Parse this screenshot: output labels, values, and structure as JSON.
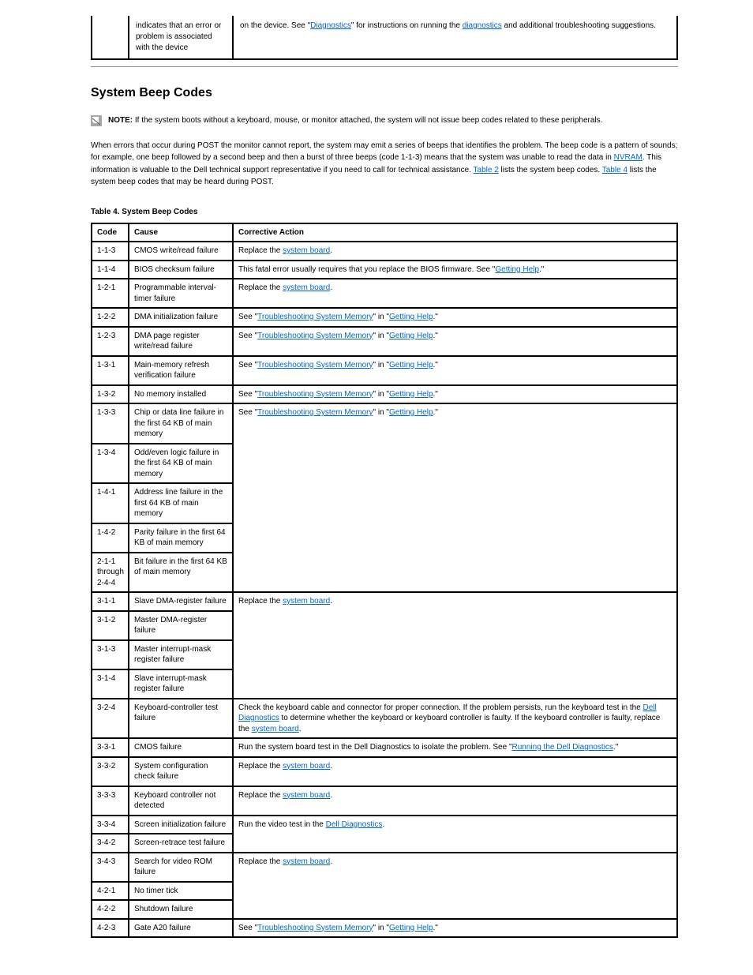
{
  "top_table": {
    "col1": "",
    "col2": "indicates that an error or problem is associated with the device",
    "col3_pre": "on the device. See \"",
    "col3_link": "Diagnostics",
    "col3_mid": "\" for instructions on running the ",
    "col3_link2": "diagnostics",
    "col3_post": " and additional troubleshooting suggestions."
  },
  "section_heading": "System Beep Codes",
  "note": {
    "label": "NOTE:",
    "text": " If the system boots without a keyboard, mouse, or monitor attached, the system will not issue beep codes related to these peripherals."
  },
  "intro_para": {
    "pre": "When errors that occur during POST the monitor cannot report, the system may emit a series of beeps that identifies the problem. The beep code is a pattern of sounds; for example, one beep followed by a second beep and then a burst of three beeps (code 1-1-3) means that the system was unable to read the data in ",
    "link1": "NVRAM",
    "mid": ". This information is valuable to the Dell technical support representative if you need to call for technical assistance. ",
    "link_table": "Table 2",
    "post_table": " lists the system beep codes. ",
    "link_final": "Table 4",
    "post_final": " lists the system beep codes that may be heard during POST."
  },
  "table_caption": "Table 4. System Beep Codes",
  "headers": {
    "code": "Code",
    "cause": "Cause",
    "action": "Corrective Action"
  },
  "rows": [
    {
      "c": "1-1-3",
      "cause": "CMOS write/read failure",
      "action": {
        "pre": "Replace the ",
        "l1": "system board",
        "post": "."
      }
    },
    {
      "c": "1-1-4",
      "cause": "BIOS checksum failure",
      "action": {
        "pre": "This fatal error usually requires that you replace the BIOS firmware. See \"",
        "l1": "Getting Help",
        "post": ".\""
      }
    },
    {
      "c": "1-2-1",
      "cause": "Programmable interval-timer failure",
      "action": {
        "pre": "Replace the ",
        "l1": "system board",
        "post": "."
      }
    },
    {
      "c": "1-2-2",
      "cause": "DMA initialization failure",
      "action": {
        "pre": "See \"",
        "l1": "Troubleshooting System Memory",
        "mid": "\" in \"",
        "l2": "Getting Help",
        "post": ".\""
      }
    },
    {
      "c": "1-2-3",
      "cause": "DMA page register write/read failure",
      "action": {
        "pre": "See \"",
        "l1": "Troubleshooting System Memory",
        "mid": "\" in \"",
        "l2": "Getting Help",
        "post": ".\""
      }
    },
    {
      "c": "1-3-1",
      "cause": "Main-memory refresh verification failure",
      "action": {
        "pre": "See \"",
        "l1": "Troubleshooting System Memory",
        "mid": "\" in \"",
        "l2": "Getting Help",
        "post": ".\""
      }
    },
    {
      "c": "1-3-2",
      "cause": "No memory installed",
      "action": {
        "pre": "See \"",
        "l1": "Troubleshooting System Memory",
        "mid": "\" in \"",
        "l2": "Getting Help",
        "post": ".\""
      }
    },
    {
      "c": "1-3-3",
      "cause": "Chip or data line failure in the first 64 KB of main memory",
      "action": {
        "pre": "See \"",
        "l1": "Troubleshooting System Memory",
        "mid": "\" in \"",
        "l2": "Getting Help",
        "post": ".\""
      }
    },
    {
      "c": "1-3-4",
      "cause": "Odd/even logic failure in the first 64 KB of main memory",
      "rowspan_start": true
    },
    {
      "c": "1-4-1",
      "cause": "Address line failure in the first 64 KB of main memory"
    },
    {
      "c": "1-4-2",
      "cause": "Parity failure in the first 64 KB of main memory"
    },
    {
      "c": "2-1-1 through 2-4-4",
      "cause": "Bit failure in the first 64 KB of main memory"
    },
    {
      "c": "3-1-1",
      "cause": "Slave DMA-register failure",
      "action": {
        "pre": "Replace the ",
        "l1": "system board",
        "post": "."
      },
      "rowspan_start4": true
    },
    {
      "c": "3-1-2",
      "cause": "Master DMA-register failure"
    },
    {
      "c": "3-1-3",
      "cause": "Master interrupt-mask register failure"
    },
    {
      "c": "3-1-4",
      "cause": "Slave interrupt-mask register failure"
    },
    {
      "c": "3-2-4",
      "cause": "Keyboard-controller test failure",
      "action": {
        "pre": "Check the keyboard cable and connector for proper connection. If the problem persists, run the keyboard test in the ",
        "l1": "Dell Diagnostics",
        "mid": " to determine whether the keyboard or keyboard controller is faulty. If the keyboard controller is faulty, replace the ",
        "l2": "system board",
        "post": "."
      }
    },
    {
      "c": "3-3-1",
      "cause": "CMOS failure",
      "action": {
        "pre": "Run the system board test in the Dell Diagnostics to isolate the problem. See \"",
        "l1": "Running the Dell Diagnostics",
        "post": ".\""
      }
    },
    {
      "c": "3-3-2",
      "cause": "System configuration check failure",
      "action": {
        "pre": "Replace the ",
        "l1": "system board",
        "post": "."
      }
    },
    {
      "c": "3-3-3",
      "cause": "Keyboard controller not detected",
      "action": {
        "pre": "Replace the ",
        "l1": "system board",
        "post": "."
      }
    },
    {
      "c": "3-3-4",
      "cause": "Screen initialization failure",
      "action": {
        "pre": "Run the video test in the ",
        "l1": "Dell Diagnostics",
        "post": "."
      },
      "rowspan_start2": true
    },
    {
      "c": "3-4-2",
      "cause": "Screen-retrace test failure"
    },
    {
      "c": "3-4-3",
      "cause": "Search for video ROM failure",
      "action": {
        "pre": "Replace the ",
        "l1": "system board",
        "post": "."
      },
      "rowspan_start3": true
    },
    {
      "c": "4-2-1",
      "cause": "No timer tick"
    },
    {
      "c": "4-2-2",
      "cause": "Shutdown failure"
    },
    {
      "c": "4-2-3",
      "cause": "Gate A20 failure",
      "action": {
        "pre": "See \"",
        "l1": "Troubleshooting System Memory",
        "mid": "\" in \"",
        "l2": "Getting Help",
        "post": ".\""
      }
    }
  ]
}
